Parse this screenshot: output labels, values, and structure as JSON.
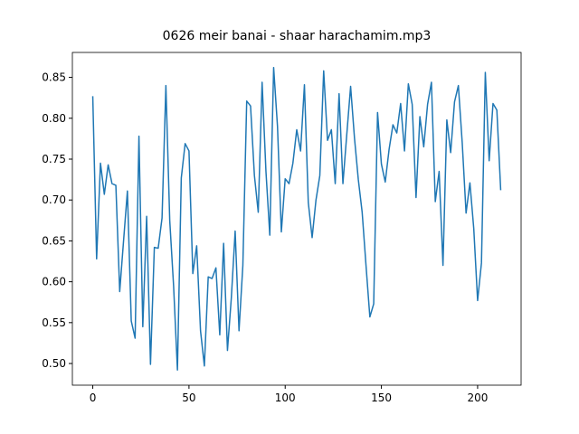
{
  "chart_data": {
    "type": "line",
    "title": "0626 meir banai - shaar harachamim.mp3",
    "x": [
      0,
      2,
      4,
      6,
      8,
      10,
      12,
      14,
      16,
      18,
      20,
      22,
      24,
      26,
      28,
      30,
      32,
      34,
      36,
      38,
      40,
      42,
      44,
      46,
      48,
      50,
      52,
      54,
      56,
      58,
      60,
      62,
      64,
      66,
      68,
      70,
      72,
      74,
      76,
      78,
      80,
      82,
      84,
      86,
      88,
      90,
      92,
      94,
      96,
      98,
      100,
      102,
      104,
      106,
      108,
      110,
      112,
      114,
      116,
      118,
      120,
      122,
      124,
      126,
      128,
      130,
      132,
      134,
      136,
      138,
      140,
      142,
      144,
      146,
      148,
      150,
      152,
      154,
      156,
      158,
      160,
      162,
      164,
      166,
      168,
      170,
      172,
      174,
      176,
      178,
      180,
      182,
      184,
      186,
      188,
      190,
      192,
      194,
      196,
      198,
      200,
      202,
      204,
      206,
      208,
      210,
      212
    ],
    "series": [
      {
        "color": "#1f77b4",
        "values": [
          0.827,
          0.628,
          0.745,
          0.707,
          0.743,
          0.72,
          0.718,
          0.588,
          0.65,
          0.711,
          0.552,
          0.531,
          0.778,
          0.545,
          0.68,
          0.499,
          0.642,
          0.641,
          0.678,
          0.84,
          0.675,
          0.595,
          0.492,
          0.727,
          0.769,
          0.76,
          0.61,
          0.644,
          0.54,
          0.497,
          0.606,
          0.604,
          0.617,
          0.535,
          0.647,
          0.516,
          0.58,
          0.662,
          0.54,
          0.62,
          0.821,
          0.815,
          0.73,
          0.685,
          0.844,
          0.735,
          0.657,
          0.862,
          0.79,
          0.661,
          0.726,
          0.72,
          0.745,
          0.786,
          0.76,
          0.841,
          0.697,
          0.654,
          0.7,
          0.73,
          0.858,
          0.773,
          0.786,
          0.72,
          0.83,
          0.72,
          0.78,
          0.839,
          0.776,
          0.725,
          0.685,
          0.62,
          0.557,
          0.573,
          0.807,
          0.744,
          0.722,
          0.762,
          0.792,
          0.782,
          0.818,
          0.76,
          0.842,
          0.817,
          0.703,
          0.802,
          0.765,
          0.817,
          0.844,
          0.698,
          0.735,
          0.62,
          0.798,
          0.758,
          0.82,
          0.84,
          0.77,
          0.684,
          0.721,
          0.665,
          0.577,
          0.623,
          0.856,
          0.748,
          0.818,
          0.81,
          0.712
        ]
      }
    ],
    "xlim": [
      -10.6,
      222.6
    ],
    "xticks": [
      0,
      50,
      100,
      150,
      200
    ],
    "ylim": [
      0.4735,
      0.8805
    ],
    "yticks": [
      {
        "value": 0.5,
        "label": "0.50"
      },
      {
        "value": 0.55,
        "label": "0.55"
      },
      {
        "value": 0.6,
        "label": "0.60"
      },
      {
        "value": 0.65,
        "label": "0.65"
      },
      {
        "value": 0.7,
        "label": "0.70"
      },
      {
        "value": 0.75,
        "label": "0.75"
      },
      {
        "value": 0.8,
        "label": "0.80"
      },
      {
        "value": 0.85,
        "label": "0.85"
      }
    ]
  }
}
